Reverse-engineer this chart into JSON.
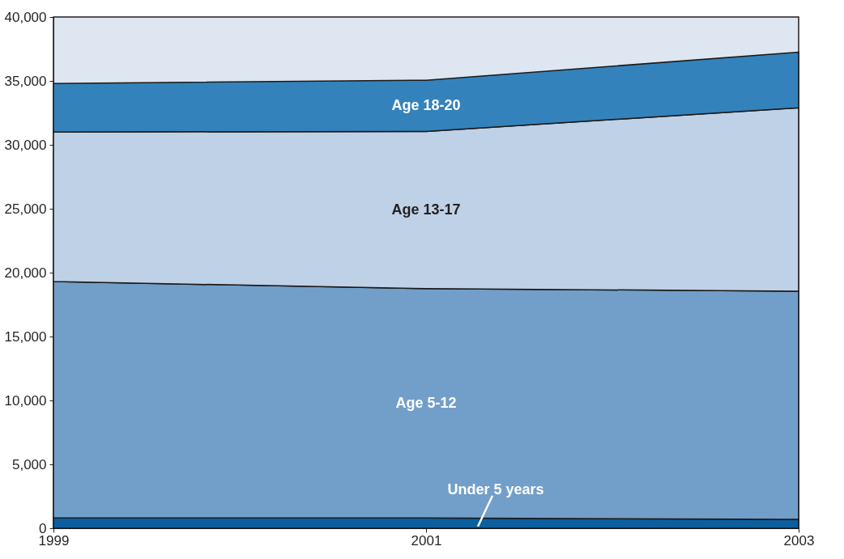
{
  "chart_data": {
    "type": "area",
    "stacked": true,
    "legend": false,
    "grid": false,
    "x": [
      1999,
      2001,
      2003
    ],
    "xlim": [
      1999,
      2003
    ],
    "xticks": [
      1999,
      2001,
      2003
    ],
    "ylim": [
      0,
      40000
    ],
    "yticks": [
      0,
      {
        "value": 5000,
        "label": "5,000"
      },
      {
        "value": 10000,
        "label": "10,000"
      },
      {
        "value": 15000,
        "label": "15,000"
      },
      {
        "value": 20000,
        "label": "20,000"
      },
      {
        "value": 25000,
        "label": "25,000"
      },
      {
        "value": 30000,
        "label": "30,000"
      },
      {
        "value": 35000,
        "label": "35,000"
      },
      {
        "value": 40000,
        "label": "40,000"
      }
    ],
    "series": [
      {
        "name": "Under 5 years",
        "color": "#0b5f9f",
        "values": [
          800,
          800,
          700
        ]
      },
      {
        "name": "Age 5-12",
        "color": "#729fc9",
        "values": [
          18500,
          17950,
          17850
        ]
      },
      {
        "name": "Age 13-17",
        "color": "#bfd1e7",
        "values": [
          11700,
          12300,
          14350
        ]
      },
      {
        "name": "Age 18-20",
        "color": "#3482bb",
        "values": [
          3800,
          4000,
          4350
        ]
      }
    ]
  }
}
